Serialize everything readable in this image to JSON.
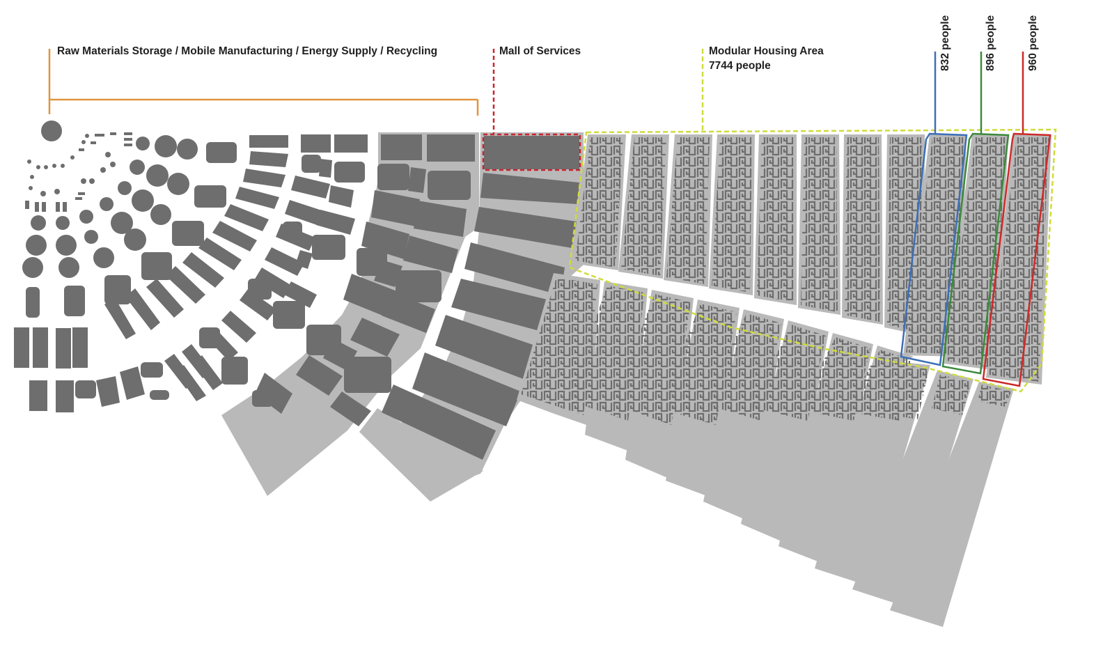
{
  "labels": {
    "raw_materials": "Raw Materials Storage / Mobile Manufacturing / Energy Supply / Recycling",
    "mall": "Mall of Services",
    "housing_title": "Modular Housing Area",
    "housing_people": "7744 people",
    "strip_blue": "832 people",
    "strip_green": "896 people",
    "strip_red": "960 people"
  },
  "colors": {
    "dark_module": "#6e6e6e",
    "light_band": "#b9b9b9",
    "orange_bracket": "#e0953a",
    "mall_red": "#c9252f",
    "housing_yellow": "#cfdc3c",
    "strip_blue": "#3d6fb6",
    "strip_green": "#3d8a3d",
    "strip_red": "#cc2a2a",
    "text": "#1f1f1f"
  },
  "icons": {
    "housing_unit": "greek-key-icon",
    "storage_tank": "circle-tank-icon",
    "hex_cluster": "hexagon-cluster-icon"
  }
}
